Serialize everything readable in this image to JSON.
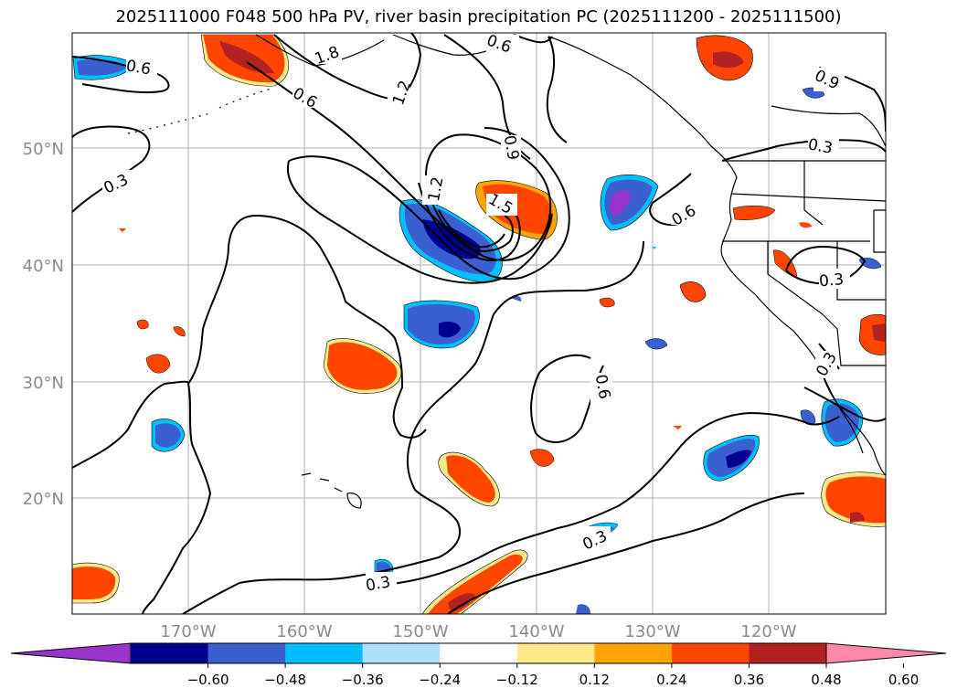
{
  "title": "2025111000 F048 500 hPa PV, river basin precipitation PC (2025111200 - 2025111500)",
  "map": {
    "lat_ticks": [
      "50°N",
      "40°N",
      "30°N",
      "20°N"
    ],
    "lon_ticks": [
      "170°W",
      "160°W",
      "150°W",
      "140°W",
      "130°W",
      "120°W"
    ],
    "contour_labels": [
      {
        "text": "0.6"
      },
      {
        "text": "1.8"
      },
      {
        "text": "0.6"
      },
      {
        "text": "0.6"
      },
      {
        "text": "1.2"
      },
      {
        "text": "0.3"
      },
      {
        "text": "0.9"
      },
      {
        "text": "1.2"
      },
      {
        "text": "1.5"
      },
      {
        "text": "0.6"
      },
      {
        "text": "0.9"
      },
      {
        "text": "0.3"
      },
      {
        "text": "0.3"
      },
      {
        "text": "0.6"
      },
      {
        "text": "0.3"
      },
      {
        "text": "0.3"
      },
      {
        "text": "0.3"
      }
    ]
  },
  "colorbar": {
    "colors": [
      "#9a33cc",
      "#000090",
      "#3a5fd0",
      "#00bfff",
      "#ade1fb",
      "#ffffff",
      "#ffea8a",
      "#ffa400",
      "#ff4500",
      "#b22222",
      "#ff88aa"
    ],
    "under_color": "#9a33cc",
    "over_color": "#ff88aa",
    "tick_labels": [
      "−0.60",
      "−0.48",
      "−0.36",
      "−0.24",
      "−0.12",
      "0.12",
      "0.24",
      "0.36",
      "0.48",
      "0.60"
    ]
  }
}
